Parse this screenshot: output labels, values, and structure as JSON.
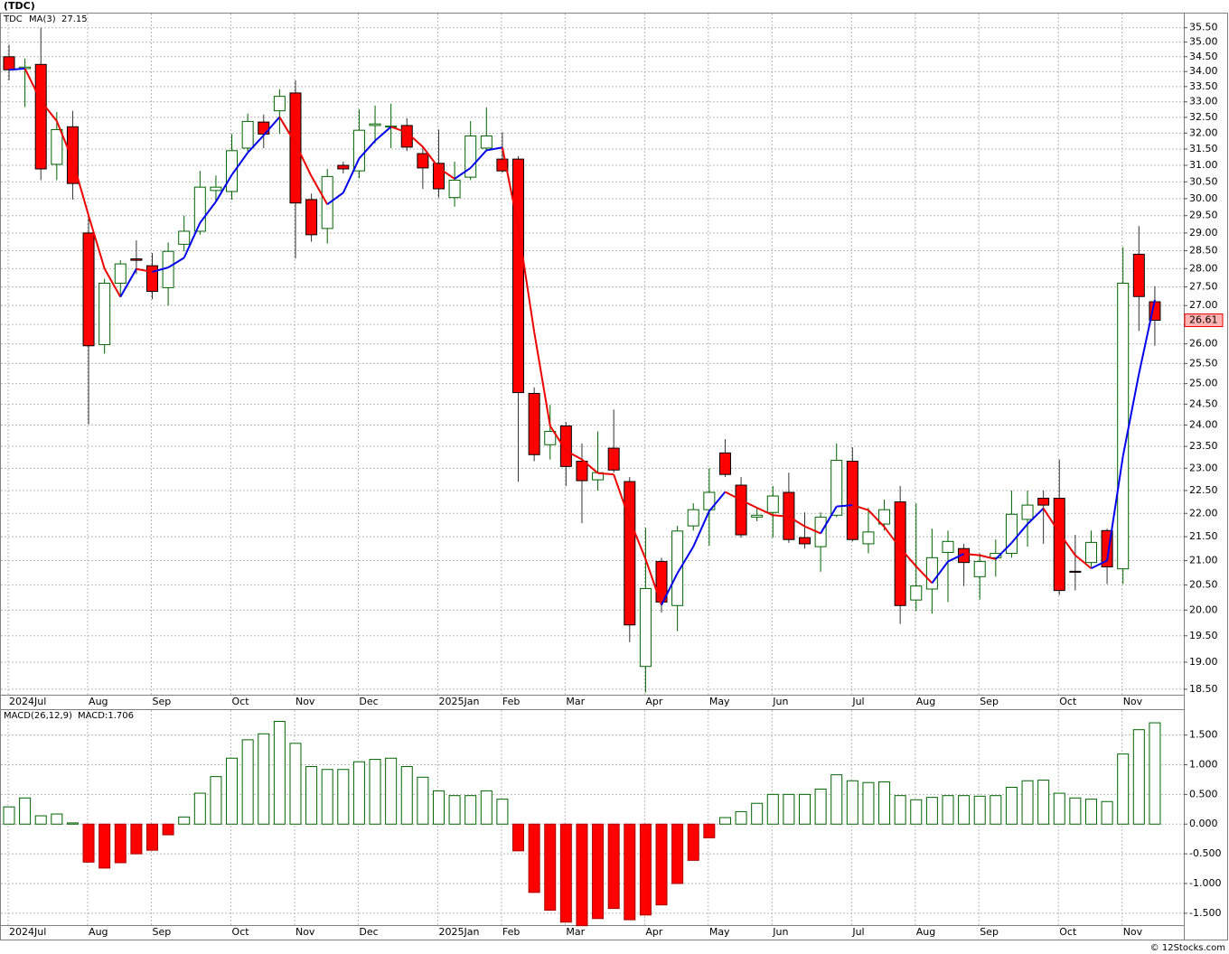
{
  "chart_data": [
    {
      "type": "candlestick",
      "title": "(TDC)",
      "categories": [
        "2024Jul",
        null,
        null,
        null,
        null,
        "Aug",
        null,
        null,
        null,
        "Sep",
        null,
        null,
        null,
        null,
        "Oct",
        null,
        null,
        null,
        "Nov",
        null,
        null,
        null,
        "Dec",
        null,
        null,
        null,
        null,
        "2025Jan",
        null,
        null,
        null,
        "Feb",
        null,
        null,
        null,
        "Mar",
        null,
        null,
        null,
        null,
        "Apr",
        null,
        null,
        null,
        "May",
        null,
        null,
        null,
        "Jun",
        null,
        null,
        null,
        null,
        "Jul",
        null,
        null,
        null,
        "Aug",
        null,
        null,
        null,
        "Sep",
        null,
        null,
        null,
        null,
        "Oct",
        null,
        null,
        null,
        "Nov",
        null,
        null
      ],
      "series": [
        {
          "name": "TDC",
          "up_color": "#006400",
          "down_color": "#ff0000",
          "open": [
            34.5,
            34.1,
            34.24,
            31.03,
            32.2,
            29,
            25.98,
            27.6,
            28.27,
            28.08,
            27.48,
            28.68,
            29.05,
            30.24,
            30.21,
            31.53,
            32.35,
            32.71,
            33.29,
            29.97,
            29.13,
            31,
            30.83,
            32.24,
            32.2,
            32.24,
            31.36,
            31.06,
            30.03,
            30.64,
            31.53,
            31.19,
            31.19,
            24.76,
            23.54,
            23.98,
            23.16,
            22.74,
            23.46,
            22.7,
            18.92,
            20.98,
            20.09,
            21.73,
            22.08,
            23.35,
            22.62,
            21.92,
            22.02,
            22.46,
            21.48,
            21.29,
            21.96,
            23.16,
            21.35,
            21.77,
            22.25,
            20.2,
            20.42,
            21.17,
            21.25,
            20.67,
            21.06,
            21.15,
            21.87,
            22.33,
            22.33,
            20.78,
            20.96,
            21.63,
            20.83,
            28.4,
            27.1
          ],
          "high": [
            34.91,
            34.44,
            35.5,
            32.67,
            32.71,
            29.5,
            27.72,
            28.23,
            28.79,
            28.43,
            28.73,
            29.5,
            30.83,
            30.69,
            31.97,
            32.62,
            32.59,
            33.41,
            33.71,
            30.15,
            30.89,
            31.11,
            32.76,
            32.88,
            32.94,
            32.47,
            31.59,
            32.11,
            31.11,
            32.38,
            32.82,
            32.03,
            31.28,
            24.91,
            24.48,
            24.07,
            23.57,
            23.85,
            24.37,
            22.8,
            21.69,
            21.06,
            21.73,
            22.22,
            23,
            23.67,
            22.8,
            22.12,
            22.6,
            22.9,
            22.02,
            22.02,
            23.57,
            23.48,
            22.12,
            22.3,
            22.6,
            22.22,
            21.67,
            21.63,
            21.35,
            21.15,
            21.44,
            22.5,
            22.5,
            22.5,
            23.2,
            21.54,
            21.63,
            21.67,
            28.6,
            29.2,
            27.52
          ],
          "low": [
            33.71,
            32.83,
            30.55,
            30.55,
            29.97,
            24.02,
            25.75,
            27.24,
            27.85,
            27.17,
            27,
            28.48,
            28.95,
            29.89,
            29.97,
            31.39,
            31.53,
            31.97,
            28.28,
            28.75,
            28.7,
            30.75,
            30.61,
            31.68,
            31.53,
            31.44,
            30.29,
            30.03,
            29.76,
            30.55,
            31.44,
            30.78,
            22.7,
            23.16,
            23.2,
            22.6,
            21.79,
            22.5,
            22.9,
            19.38,
            18.44,
            19.95,
            19.59,
            21.63,
            21.31,
            22.8,
            21.48,
            21.83,
            21.48,
            21.37,
            21.25,
            20.77,
            21.92,
            21.4,
            21.15,
            21.63,
            19.73,
            19.98,
            19.93,
            20.16,
            20.48,
            20.21,
            20.67,
            21.06,
            21.29,
            21.35,
            20.3,
            20.39,
            20.87,
            20.52,
            20.52,
            26.33,
            25.95
          ],
          "close": [
            34.06,
            34.15,
            30.89,
            32.11,
            30.45,
            25.95,
            27.6,
            28.13,
            28.23,
            27.38,
            28.48,
            29.05,
            30.34,
            30.34,
            31.45,
            32.37,
            31.97,
            33.18,
            29.87,
            28.95,
            30.66,
            30.89,
            32.09,
            32.29,
            32.22,
            31.56,
            30.92,
            30.29,
            30.55,
            31.91,
            31.91,
            30.83,
            24.78,
            23.31,
            23.85,
            23.04,
            22.72,
            22.9,
            22.96,
            19.71,
            20.43,
            20.16,
            21.62,
            22.08,
            22.46,
            22.86,
            21.54,
            21.96,
            22.38,
            21.44,
            21.35,
            21.92,
            23.18,
            21.44,
            21.6,
            22.08,
            20.09,
            20.48,
            21.06,
            21.4,
            20.96,
            20.98,
            21.15,
            21.98,
            22.18,
            22.18,
            20.39,
            20.76,
            21.38,
            20.87,
            27.6,
            27.24,
            26.61
          ]
        }
      ],
      "ma": {
        "name": "MA(3)",
        "up_color": "#0000ee",
        "down_color": "#ee0000",
        "values": [
          34.06,
          34.1,
          33.03,
          32.38,
          31.15,
          29.5,
          28,
          27.23,
          27.99,
          27.91,
          28.03,
          28.3,
          29.29,
          29.91,
          30.71,
          31.39,
          31.93,
          32.51,
          31.67,
          30.67,
          29.83,
          30.17,
          31.21,
          31.76,
          32.2,
          32.02,
          31.57,
          30.92,
          30.59,
          30.92,
          31.46,
          31.55,
          29.17,
          26.31,
          23.98,
          23.4,
          23.2,
          22.89,
          22.86,
          21.86,
          21.03,
          20.1,
          20.74,
          21.29,
          22.05,
          22.47,
          22.29,
          22.12,
          21.96,
          21.93,
          21.72,
          21.57,
          22.15,
          22.18,
          22.07,
          21.71,
          21.26,
          20.88,
          20.54,
          20.98,
          21.14,
          21.11,
          21.03,
          21.37,
          21.77,
          22.11,
          21.58,
          21.11,
          20.84,
          21,
          23.28,
          25.24,
          27.15
        ]
      },
      "log_scale": true,
      "grid": true,
      "ylim": [
        18.4,
        36
      ],
      "yticks": [
        {
          "value": 18.5,
          "label": "18.50"
        },
        {
          "value": 19,
          "label": "19.00"
        },
        {
          "value": 19.5,
          "label": "19.50"
        },
        {
          "value": 20,
          "label": "20.00"
        },
        {
          "value": 20.5,
          "label": "20.50"
        },
        {
          "value": 21,
          "label": "21.00"
        },
        {
          "value": 21.5,
          "label": "21.50"
        },
        {
          "value": 22,
          "label": "22.00"
        },
        {
          "value": 22.5,
          "label": "22.50"
        },
        {
          "value": 23,
          "label": "23.00"
        },
        {
          "value": 23.5,
          "label": "23.50"
        },
        {
          "value": 24,
          "label": "24.00"
        },
        {
          "value": 24.5,
          "label": "24.50"
        },
        {
          "value": 25,
          "label": "25.00"
        },
        {
          "value": 25.5,
          "label": "25.50"
        },
        {
          "value": 26,
          "label": "26.00"
        },
        {
          "value": 26.5,
          "label": "26.50"
        },
        {
          "value": 27,
          "label": "27.00"
        },
        {
          "value": 27.5,
          "label": "27.50"
        },
        {
          "value": 28,
          "label": "28.00"
        },
        {
          "value": 28.5,
          "label": "28.50"
        },
        {
          "value": 29,
          "label": "29.00"
        },
        {
          "value": 29.5,
          "label": "29.50"
        },
        {
          "value": 30,
          "label": "30.00"
        },
        {
          "value": 30.5,
          "label": "30.50"
        },
        {
          "value": 31,
          "label": "31.00"
        },
        {
          "value": 31.5,
          "label": "31.50"
        },
        {
          "value": 32,
          "label": "32.00"
        },
        {
          "value": 32.5,
          "label": "32.50"
        },
        {
          "value": 33,
          "label": "33.00"
        },
        {
          "value": 33.5,
          "label": "33.50"
        },
        {
          "value": 34,
          "label": "34.00"
        },
        {
          "value": 34.5,
          "label": "34.50"
        },
        {
          "value": 35,
          "label": "35.00"
        },
        {
          "value": 35.5,
          "label": "35.50"
        }
      ]
    },
    {
      "type": "bar",
      "title": "MACD(26,12,9)",
      "legend_label": "MACD:1.706",
      "up_color": "#006400",
      "down_color": "#ff0000",
      "values": [
        0.29,
        0.44,
        0.14,
        0.17,
        0.02,
        -0.64,
        -0.74,
        -0.65,
        -0.5,
        -0.44,
        -0.18,
        0.12,
        0.52,
        0.8,
        1.11,
        1.42,
        1.52,
        1.73,
        1.36,
        0.97,
        0.92,
        0.92,
        1.05,
        1.09,
        1.11,
        0.97,
        0.79,
        0.56,
        0.48,
        0.48,
        0.56,
        0.42,
        -0.45,
        -1.15,
        -1.45,
        -1.65,
        -1.71,
        -1.59,
        -1.42,
        -1.61,
        -1.53,
        -1.36,
        -1,
        -0.61,
        -0.23,
        0.11,
        0.21,
        0.35,
        0.5,
        0.5,
        0.5,
        0.59,
        0.83,
        0.73,
        0.7,
        0.71,
        0.48,
        0.41,
        0.45,
        0.48,
        0.48,
        0.47,
        0.48,
        0.62,
        0.73,
        0.74,
        0.52,
        0.44,
        0.42,
        0.38,
        1.18,
        1.59,
        1.706
      ],
      "ylim": [
        -1.7,
        1.92
      ],
      "grid": true,
      "yticks": [
        {
          "value": -1.5,
          "label": "-1.500"
        },
        {
          "value": -1,
          "label": "-1.000"
        },
        {
          "value": -0.5,
          "label": "-0.500"
        },
        {
          "value": 0,
          "label": "0.000"
        },
        {
          "value": 0.5,
          "label": "0.500"
        },
        {
          "value": 1,
          "label": "1.000"
        },
        {
          "value": 1.5,
          "label": "1.500"
        }
      ]
    }
  ],
  "footer": "© 12Stocks.com"
}
